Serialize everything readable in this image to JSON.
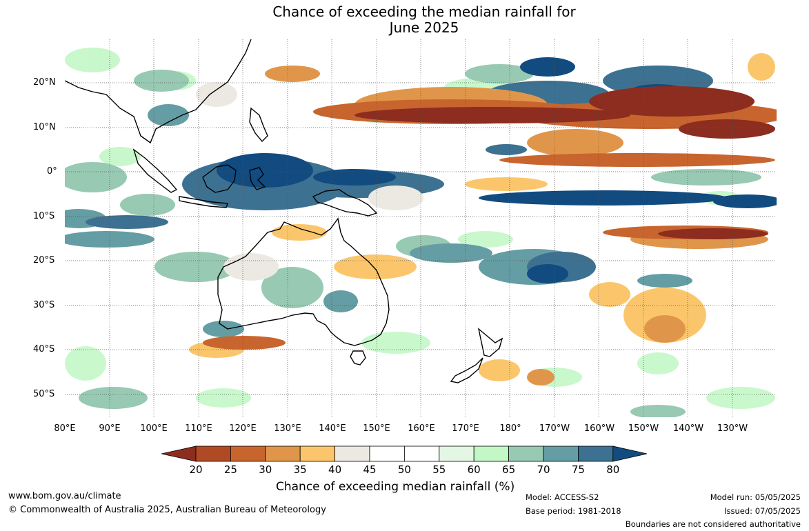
{
  "title": {
    "line1": "Chance of exceeding the median rainfall for",
    "line2": "June 2025"
  },
  "map": {
    "lat_labels": [
      "20°N",
      "10°N",
      "0°",
      "10°S",
      "20°S",
      "30°S",
      "40°S",
      "50°S"
    ],
    "lon_labels": [
      "80°E",
      "90°E",
      "100°E",
      "110°E",
      "120°E",
      "130°E",
      "140°E",
      "150°E",
      "160°E",
      "170°E",
      "180°",
      "170°W",
      "160°W",
      "150°W",
      "140°W",
      "130°W"
    ]
  },
  "colorbar": {
    "title": "Chance of exceeding median rainfall (%)",
    "ticks": [
      "20",
      "25",
      "30",
      "35",
      "40",
      "45",
      "50",
      "55",
      "60",
      "65",
      "70",
      "75",
      "80"
    ],
    "colors": [
      "#8c2d1f",
      "#b04a25",
      "#c8652f",
      "#e0964a",
      "#fbc66b",
      "#ece9e2",
      "#ffffff",
      "#ffffff",
      "#e4f6e4",
      "#c3f7c6",
      "#97c9b3",
      "#649da3",
      "#3d7191",
      "#124b80"
    ]
  },
  "footer": {
    "website": "www.bom.gov.au/climate",
    "copyright": "© Commonwealth of Australia 2025, Australian Bureau of Meteorology",
    "model": "Model: ACCESS-S2",
    "base_period": "Base period: 1981-2018",
    "model_run": "Model run: 05/05/2025",
    "issued": "Issued: 07/05/2025",
    "disclaimer": "Boundaries are not considered authoritative"
  }
}
